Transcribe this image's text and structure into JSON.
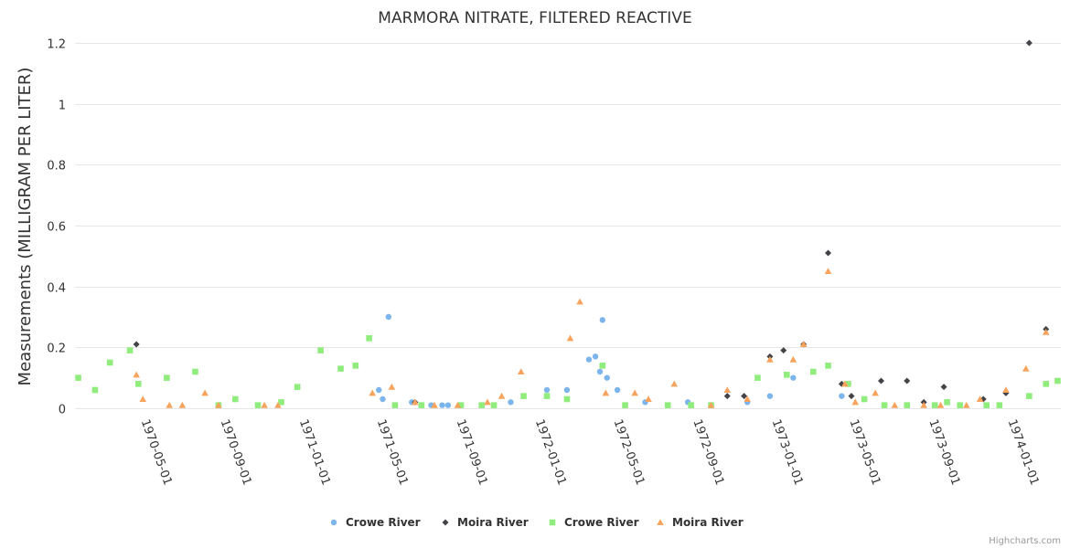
{
  "chart_data": {
    "type": "scatter",
    "title": "MARMORA NITRATE, FILTERED REACTIVE",
    "ylabel": "Measurements (MILLIGRAM PER LITER)",
    "xlabel": "",
    "ylim": [
      0,
      1.2
    ],
    "yticks": [
      0,
      0.2,
      0.4,
      0.6,
      0.8,
      1,
      1.2
    ],
    "ytick_labels": [
      "0",
      "0.2",
      "0.4",
      "0.6",
      "0.8",
      "1",
      "1.2"
    ],
    "xlim": [
      "1970-01-10",
      "1974-03-15"
    ],
    "xticks": [
      "1970-05-01",
      "1970-09-01",
      "1971-01-01",
      "1971-05-01",
      "1971-09-01",
      "1972-01-01",
      "1972-05-01",
      "1972-09-01",
      "1973-01-01",
      "1973-05-01",
      "1973-09-01",
      "1974-01-01"
    ],
    "grid": true,
    "legend_position": "bottom-center",
    "series": [
      {
        "name": "Crowe River",
        "marker": "circle",
        "color": "#7cb5ec",
        "points": [
          [
            "1971-04-25",
            0.06
          ],
          [
            "1971-05-01",
            0.03
          ],
          [
            "1971-05-10",
            0.3
          ],
          [
            "1971-06-15",
            0.02
          ],
          [
            "1971-07-15",
            0.01
          ],
          [
            "1971-08-01",
            0.01
          ],
          [
            "1971-08-10",
            0.01
          ],
          [
            "1971-11-15",
            0.02
          ],
          [
            "1972-01-10",
            0.06
          ],
          [
            "1972-02-10",
            0.06
          ],
          [
            "1972-03-15",
            0.16
          ],
          [
            "1972-03-25",
            0.17
          ],
          [
            "1972-04-01",
            0.12
          ],
          [
            "1972-04-05",
            0.29
          ],
          [
            "1972-04-12",
            0.1
          ],
          [
            "1972-04-28",
            0.06
          ],
          [
            "1972-06-10",
            0.02
          ],
          [
            "1972-08-15",
            0.02
          ],
          [
            "1972-11-15",
            0.02
          ],
          [
            "1972-12-20",
            0.04
          ],
          [
            "1973-01-25",
            0.1
          ],
          [
            "1973-04-10",
            0.04
          ]
        ]
      },
      {
        "name": "Moira River",
        "marker": "diamond",
        "color": "#434348",
        "points": [
          [
            "1970-04-15",
            0.21
          ],
          [
            "1971-06-20",
            0.02
          ],
          [
            "1972-10-15",
            0.04
          ],
          [
            "1972-11-10",
            0.04
          ],
          [
            "1972-12-20",
            0.17
          ],
          [
            "1973-01-10",
            0.19
          ],
          [
            "1973-02-10",
            0.21
          ],
          [
            "1973-03-20",
            0.51
          ],
          [
            "1973-04-10",
            0.08
          ],
          [
            "1973-04-25",
            0.04
          ],
          [
            "1973-06-10",
            0.09
          ],
          [
            "1973-07-20",
            0.09
          ],
          [
            "1973-08-15",
            0.02
          ],
          [
            "1973-09-15",
            0.07
          ],
          [
            "1973-11-15",
            0.03
          ],
          [
            "1973-12-20",
            0.05
          ],
          [
            "1974-01-25",
            1.2
          ],
          [
            "1974-02-20",
            0.26
          ]
        ]
      },
      {
        "name": "Crowe River",
        "marker": "square",
        "color": "#90ed7d",
        "points": [
          [
            "1970-01-15",
            0.1
          ],
          [
            "1970-02-10",
            0.06
          ],
          [
            "1970-03-05",
            0.15
          ],
          [
            "1970-04-05",
            0.19
          ],
          [
            "1970-04-18",
            0.08
          ],
          [
            "1970-06-01",
            0.1
          ],
          [
            "1970-07-15",
            0.12
          ],
          [
            "1970-08-20",
            0.01
          ],
          [
            "1970-09-15",
            0.03
          ],
          [
            "1970-10-20",
            0.01
          ],
          [
            "1970-11-25",
            0.02
          ],
          [
            "1970-12-20",
            0.07
          ],
          [
            "1971-01-25",
            0.19
          ],
          [
            "1971-02-25",
            0.13
          ],
          [
            "1971-03-20",
            0.14
          ],
          [
            "1971-04-10",
            0.23
          ],
          [
            "1971-05-20",
            0.01
          ],
          [
            "1971-06-30",
            0.01
          ],
          [
            "1971-08-30",
            0.01
          ],
          [
            "1971-10-01",
            0.01
          ],
          [
            "1971-10-20",
            0.01
          ],
          [
            "1971-12-05",
            0.04
          ],
          [
            "1972-01-10",
            0.04
          ],
          [
            "1972-02-10",
            0.03
          ],
          [
            "1972-04-05",
            0.14
          ],
          [
            "1972-05-10",
            0.01
          ],
          [
            "1972-07-15",
            0.01
          ],
          [
            "1972-08-20",
            0.01
          ],
          [
            "1972-09-20",
            0.01
          ],
          [
            "1972-12-01",
            0.1
          ],
          [
            "1973-01-15",
            0.11
          ],
          [
            "1973-02-25",
            0.12
          ],
          [
            "1973-03-20",
            0.14
          ],
          [
            "1973-04-20",
            0.08
          ],
          [
            "1973-05-15",
            0.03
          ],
          [
            "1973-06-15",
            0.01
          ],
          [
            "1973-07-20",
            0.01
          ],
          [
            "1973-09-01",
            0.01
          ],
          [
            "1973-09-20",
            0.02
          ],
          [
            "1973-10-10",
            0.01
          ],
          [
            "1973-11-20",
            0.01
          ],
          [
            "1973-12-10",
            0.01
          ],
          [
            "1974-01-25",
            0.04
          ],
          [
            "1974-02-20",
            0.08
          ],
          [
            "1974-03-10",
            0.09
          ]
        ]
      },
      {
        "name": "Moira River",
        "marker": "triangle",
        "color": "#f7a35c",
        "points": [
          [
            "1970-04-15",
            0.11
          ],
          [
            "1970-04-25",
            0.03
          ],
          [
            "1970-06-05",
            0.01
          ],
          [
            "1970-06-25",
            0.01
          ],
          [
            "1970-07-30",
            0.05
          ],
          [
            "1970-08-20",
            0.01
          ],
          [
            "1970-10-30",
            0.01
          ],
          [
            "1970-11-20",
            0.01
          ],
          [
            "1971-04-15",
            0.05
          ],
          [
            "1971-05-15",
            0.07
          ],
          [
            "1971-06-20",
            0.02
          ],
          [
            "1971-07-20",
            0.01
          ],
          [
            "1971-08-25",
            0.01
          ],
          [
            "1971-10-10",
            0.02
          ],
          [
            "1971-11-01",
            0.04
          ],
          [
            "1971-12-01",
            0.12
          ],
          [
            "1972-02-15",
            0.23
          ],
          [
            "1972-03-01",
            0.35
          ],
          [
            "1972-04-10",
            0.05
          ],
          [
            "1972-05-25",
            0.05
          ],
          [
            "1972-06-15",
            0.03
          ],
          [
            "1972-07-25",
            0.08
          ],
          [
            "1972-09-20",
            0.01
          ],
          [
            "1972-10-15",
            0.06
          ],
          [
            "1972-11-15",
            0.03
          ],
          [
            "1972-12-20",
            0.16
          ],
          [
            "1973-01-25",
            0.16
          ],
          [
            "1973-02-10",
            0.21
          ],
          [
            "1973-03-20",
            0.45
          ],
          [
            "1973-04-15",
            0.08
          ],
          [
            "1973-05-01",
            0.02
          ],
          [
            "1973-06-01",
            0.05
          ],
          [
            "1973-07-01",
            0.01
          ],
          [
            "1973-08-15",
            0.01
          ],
          [
            "1973-09-10",
            0.01
          ],
          [
            "1973-10-20",
            0.01
          ],
          [
            "1973-11-10",
            0.03
          ],
          [
            "1973-12-20",
            0.06
          ],
          [
            "1974-01-20",
            0.13
          ],
          [
            "1974-02-20",
            0.25
          ]
        ]
      }
    ]
  },
  "credits": "Highcharts.com"
}
